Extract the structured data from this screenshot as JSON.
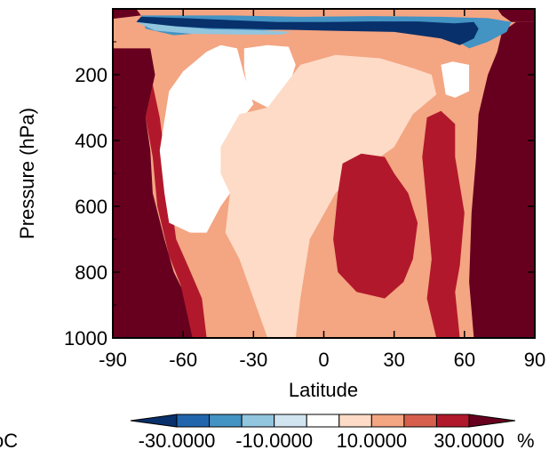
{
  "chart_data": {
    "type": "heatmap",
    "title": "",
    "xlabel": "Latitude",
    "ylabel": "Pressure (hPa)",
    "xlim": [
      -90,
      90
    ],
    "ylim": [
      1000,
      0
    ],
    "x_ticks": [
      "-90",
      "-60",
      "-30",
      "0",
      "30",
      "60",
      "90"
    ],
    "y_ticks": [
      "200",
      "400",
      "600",
      "800",
      "1000"
    ],
    "colorbar": {
      "labels": [
        "-30.0000",
        "-10.0000",
        "10.0000",
        "30.0000"
      ],
      "unit": "%",
      "colors": [
        "#08306b",
        "#2166ac",
        "#4393c3",
        "#92c5de",
        "#d1e5f0",
        "#ffffff",
        "#fddbc7",
        "#f4a582",
        "#d6604d",
        "#b2182b",
        "#67001f"
      ]
    },
    "side_text": "oC",
    "region_legend": [
      {
        "class": -4,
        "color": "#08306b"
      },
      {
        "class": -3,
        "color": "#2166ac"
      },
      {
        "class": -2,
        "color": "#4393c3"
      },
      {
        "class": -1,
        "color": "#92c5de"
      },
      {
        "class": 0,
        "color": "#ffffff"
      },
      {
        "class": 1,
        "color": "#fddbc7"
      },
      {
        "class": 2,
        "color": "#f4a582"
      },
      {
        "class": 3,
        "color": "#d6604d"
      },
      {
        "class": 4,
        "color": "#b2182b"
      },
      {
        "class": 5,
        "color": "#67001f"
      }
    ],
    "regions": [
      {
        "name": "field-base",
        "class": 2,
        "points": [
          [
            -90,
            0
          ],
          [
            90,
            0
          ],
          [
            90,
            1000
          ],
          [
            -90,
            1000
          ]
        ]
      },
      {
        "name": "sh-high-lat-dark",
        "class": 5,
        "points": [
          [
            -90,
            120
          ],
          [
            -74,
            120
          ],
          [
            -72,
            200
          ],
          [
            -76,
            330
          ],
          [
            -74,
            430
          ],
          [
            -73,
            560
          ],
          [
            -68,
            700
          ],
          [
            -64,
            800
          ],
          [
            -57,
            900
          ],
          [
            -54,
            1000
          ],
          [
            -90,
            1000
          ]
        ]
      },
      {
        "name": "nh-high-lat-dark",
        "class": 5,
        "points": [
          [
            66,
            320
          ],
          [
            70,
            200
          ],
          [
            74,
            130
          ],
          [
            76,
            70
          ],
          [
            82,
            40
          ],
          [
            90,
            40
          ],
          [
            90,
            1000
          ],
          [
            64,
            1000
          ],
          [
            62,
            830
          ],
          [
            63,
            620
          ],
          [
            65,
            450
          ]
        ]
      },
      {
        "name": "sh-mid-red",
        "class": 4,
        "points": [
          [
            -73,
            230
          ],
          [
            -70,
            330
          ],
          [
            -68,
            440
          ],
          [
            -63,
            700
          ],
          [
            -58,
            780
          ],
          [
            -52,
            880
          ],
          [
            -50,
            1000
          ],
          [
            -56,
            1000
          ],
          [
            -61,
            840
          ],
          [
            -66,
            750
          ],
          [
            -71,
            600
          ],
          [
            -73,
            450
          ],
          [
            -76,
            330
          ]
        ]
      },
      {
        "name": "upper-orange-arch",
        "class": 2,
        "points": [
          [
            -66,
            120
          ],
          [
            -47,
            75
          ],
          [
            -20,
            60
          ],
          [
            10,
            58
          ],
          [
            40,
            60
          ],
          [
            56,
            70
          ],
          [
            65,
            90
          ],
          [
            68,
            140
          ],
          [
            66,
            210
          ],
          [
            60,
            260
          ],
          [
            54,
            240
          ],
          [
            53,
            140
          ],
          [
            44,
            110
          ],
          [
            10,
            100
          ],
          [
            -25,
            105
          ],
          [
            -55,
            130
          ],
          [
            -62,
            190
          ],
          [
            -66,
            210
          ]
        ]
      },
      {
        "name": "sh-white-core",
        "class": 0,
        "points": [
          [
            -66,
            250
          ],
          [
            -60,
            190
          ],
          [
            -50,
            130
          ],
          [
            -44,
            110
          ],
          [
            -37,
            120
          ],
          [
            -34,
            200
          ],
          [
            -30,
            290
          ],
          [
            -40,
            380
          ],
          [
            -32,
            420
          ],
          [
            -34,
            520
          ],
          [
            -40,
            560
          ],
          [
            -44,
            600
          ],
          [
            -50,
            680
          ],
          [
            -57,
            680
          ],
          [
            -66,
            650
          ],
          [
            -68,
            560
          ],
          [
            -70,
            430
          ]
        ]
      },
      {
        "name": "upper-white-core",
        "class": 0,
        "points": [
          [
            -34,
            120
          ],
          [
            -24,
            110
          ],
          [
            -15,
            115
          ],
          [
            -12,
            170
          ],
          [
            -16,
            260
          ],
          [
            -24,
            300
          ],
          [
            -32,
            270
          ],
          [
            -34,
            180
          ]
        ]
      },
      {
        "name": "nh-upper-white",
        "class": 0,
        "points": [
          [
            50,
            170
          ],
          [
            55,
            160
          ],
          [
            62,
            170
          ],
          [
            62,
            250
          ],
          [
            56,
            270
          ],
          [
            52,
            260
          ]
        ]
      },
      {
        "name": "central-light",
        "class": 1,
        "points": [
          [
            -44,
            420
          ],
          [
            -36,
            320
          ],
          [
            -24,
            300
          ],
          [
            -10,
            170
          ],
          [
            5,
            140
          ],
          [
            24,
            150
          ],
          [
            38,
            180
          ],
          [
            46,
            200
          ],
          [
            48,
            260
          ],
          [
            38,
            320
          ],
          [
            30,
            420
          ],
          [
            14,
            500
          ],
          [
            5,
            560
          ],
          [
            -6,
            700
          ],
          [
            -10,
            880
          ],
          [
            -12,
            1000
          ],
          [
            -24,
            1000
          ],
          [
            -30,
            880
          ],
          [
            -36,
            760
          ],
          [
            -42,
            680
          ],
          [
            -40,
            560
          ],
          [
            -44,
            500
          ]
        ]
      },
      {
        "name": "nh-red-core",
        "class": 4,
        "points": [
          [
            8,
            470
          ],
          [
            16,
            440
          ],
          [
            26,
            450
          ],
          [
            30,
            500
          ],
          [
            36,
            560
          ],
          [
            40,
            650
          ],
          [
            38,
            760
          ],
          [
            34,
            830
          ],
          [
            26,
            880
          ],
          [
            14,
            860
          ],
          [
            6,
            800
          ],
          [
            4,
            700
          ],
          [
            6,
            560
          ]
        ]
      },
      {
        "name": "nh-red-tail",
        "class": 4,
        "points": [
          [
            44,
            330
          ],
          [
            50,
            310
          ],
          [
            56,
            350
          ],
          [
            56,
            450
          ],
          [
            60,
            620
          ],
          [
            58,
            780
          ],
          [
            56,
            860
          ],
          [
            58,
            1000
          ],
          [
            48,
            1000
          ],
          [
            44,
            880
          ],
          [
            46,
            760
          ],
          [
            44,
            600
          ],
          [
            42,
            450
          ]
        ]
      },
      {
        "name": "tropopause-blue-band",
        "class": -2,
        "points": [
          [
            -78,
            20
          ],
          [
            -40,
            20
          ],
          [
            -10,
            24
          ],
          [
            20,
            22
          ],
          [
            50,
            24
          ],
          [
            70,
            28
          ],
          [
            80,
            40
          ],
          [
            78,
            70
          ],
          [
            70,
            100
          ],
          [
            62,
            120
          ],
          [
            55,
            90
          ],
          [
            40,
            70
          ],
          [
            10,
            62
          ],
          [
            -20,
            64
          ],
          [
            -45,
            70
          ],
          [
            -64,
            80
          ],
          [
            -76,
            60
          ]
        ]
      },
      {
        "name": "strat-dark-blue",
        "class": -4,
        "points": [
          [
            -78,
            24
          ],
          [
            -60,
            28
          ],
          [
            -40,
            34
          ],
          [
            -20,
            40
          ],
          [
            0,
            40
          ],
          [
            20,
            38
          ],
          [
            40,
            38
          ],
          [
            56,
            44
          ],
          [
            64,
            40
          ],
          [
            66,
            60
          ],
          [
            64,
            90
          ],
          [
            58,
            110
          ],
          [
            50,
            90
          ],
          [
            30,
            70
          ],
          [
            0,
            66
          ],
          [
            -25,
            62
          ],
          [
            -50,
            58
          ],
          [
            -70,
            50
          ],
          [
            -80,
            40
          ]
        ]
      },
      {
        "name": "strat-light-blue",
        "class": -1,
        "points": [
          [
            -80,
            40
          ],
          [
            -62,
            54
          ],
          [
            -48,
            62
          ],
          [
            -30,
            64
          ],
          [
            -14,
            70
          ],
          [
            -18,
            78
          ],
          [
            -36,
            78
          ],
          [
            -56,
            76
          ],
          [
            -72,
            66
          ]
        ]
      },
      {
        "name": "top-dark-strip",
        "class": 5,
        "points": [
          [
            -90,
            0
          ],
          [
            -80,
            0
          ],
          [
            -78,
            20
          ],
          [
            -90,
            30
          ]
        ]
      },
      {
        "name": "top-right-dark",
        "class": 5,
        "points": [
          [
            74,
            0
          ],
          [
            90,
            0
          ],
          [
            90,
            40
          ],
          [
            80,
            40
          ],
          [
            76,
            20
          ]
        ]
      }
    ]
  }
}
